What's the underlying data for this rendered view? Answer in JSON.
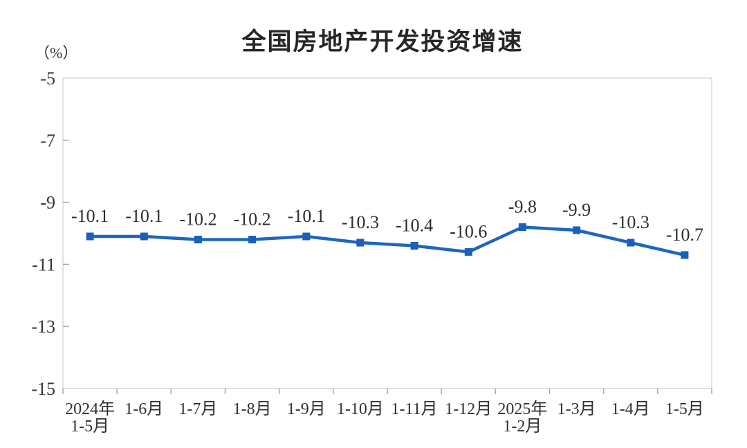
{
  "chart_data": {
    "type": "line",
    "title": "全国房地产开发投资增速",
    "unit_label": "（%）",
    "xlabel": "",
    "ylabel": "（%）",
    "categories": [
      "2024年1-5月",
      "1-6月",
      "1-7月",
      "1-8月",
      "1-9月",
      "1-10月",
      "1-11月",
      "1-12月",
      "2025年1-2月",
      "1-3月",
      "1-4月",
      "1-5月"
    ],
    "category_lines": [
      [
        "2024年",
        "1-5月"
      ],
      [
        "1-6月"
      ],
      [
        "1-7月"
      ],
      [
        "1-8月"
      ],
      [
        "1-9月"
      ],
      [
        "1-10月"
      ],
      [
        "1-11月"
      ],
      [
        "1-12月"
      ],
      [
        "2025年",
        "1-2月"
      ],
      [
        "1-3月"
      ],
      [
        "1-4月"
      ],
      [
        "1-5月"
      ]
    ],
    "series": [
      {
        "name": "全国房地产开发投资增速",
        "values": [
          -10.1,
          -10.1,
          -10.2,
          -10.2,
          -10.1,
          -10.3,
          -10.4,
          -10.6,
          -9.8,
          -9.9,
          -10.3,
          -10.7
        ]
      }
    ],
    "data_labels": [
      "-10.1",
      "-10.1",
      "-10.2",
      "-10.2",
      "-10.1",
      "-10.3",
      "-10.4",
      "-10.6",
      "-9.8",
      "-9.9",
      "-10.3",
      "-10.7"
    ],
    "ylim": [
      -15,
      -5
    ],
    "yticks": [
      -5,
      -7,
      -9,
      -11,
      -13,
      -15
    ],
    "ytick_labels": [
      "-5",
      "-7",
      "-9",
      "-11",
      "-13",
      "-15"
    ],
    "grid": false,
    "legend": "none",
    "marker": "square"
  },
  "colors": {
    "line": "#1e66c0",
    "marker": "#1b5fb8",
    "plot_border": "#d9d9d9",
    "tick": "#a8a8a8",
    "title_text": "#262626",
    "axis_text": "#333333",
    "background": "#ffffff"
  }
}
